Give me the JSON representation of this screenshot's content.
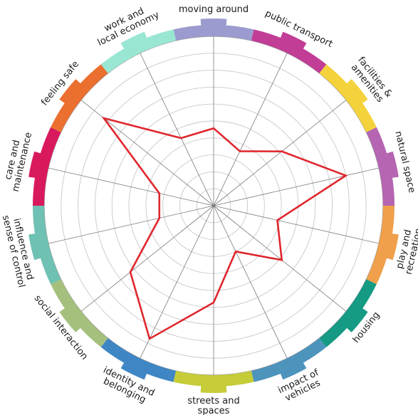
{
  "chart_data": {
    "type": "radar",
    "title": "",
    "rings": 10,
    "scale_max": 7,
    "grid": true,
    "categories": [
      {
        "name": "moving around",
        "lines": [
          "moving around"
        ],
        "color": "#9b9bcf",
        "value": 3.2
      },
      {
        "name": "public transport",
        "lines": [
          "public transport"
        ],
        "color": "#c13d96",
        "value": 2.5
      },
      {
        "name": "facilities & amenities",
        "lines": [
          "facilities &",
          "amenities"
        ],
        "color": "#f4d23c",
        "value": 3.6
      },
      {
        "name": "natural space",
        "lines": [
          "natural space"
        ],
        "color": "#b565b1",
        "value": 5.6
      },
      {
        "name": "play and recreation",
        "lines": [
          "play and",
          "recreation"
        ],
        "color": "#f0a04b",
        "value": 2.7
      },
      {
        "name": "housing",
        "lines": [
          "housing"
        ],
        "color": "#159a84",
        "value": 3.6
      },
      {
        "name": "impact of vehicles",
        "lines": [
          "impact of",
          "vehicles"
        ],
        "color": "#4d94bd",
        "value": 2.1
      },
      {
        "name": "streets and spaces",
        "lines": [
          "streets and",
          "spaces"
        ],
        "color": "#c5cc37",
        "value": 4.0
      },
      {
        "name": "identity and belonging",
        "lines": [
          "identity and",
          "belonging"
        ],
        "color": "#3f86c4",
        "value": 6.1
      },
      {
        "name": "social interaction",
        "lines": [
          "social interaction"
        ],
        "color": "#a5bf7d",
        "value": 4.4
      },
      {
        "name": "influence and sense of control",
        "lines": [
          "influence and",
          "sense of control"
        ],
        "color": "#6fc1b3",
        "value": 2.3
      },
      {
        "name": "care and maintenance",
        "lines": [
          "care and",
          "maintenance"
        ],
        "color": "#d9195e",
        "value": 2.3
      },
      {
        "name": "feeling safe",
        "lines": [
          "feeling safe"
        ],
        "color": "#eb6f2f",
        "value": 5.8
      },
      {
        "name": "work and local economy",
        "lines": [
          "work and",
          "local economy"
        ],
        "color": "#99e6d3",
        "value": 3.1
      }
    ],
    "line_color": "#e0262d"
  }
}
